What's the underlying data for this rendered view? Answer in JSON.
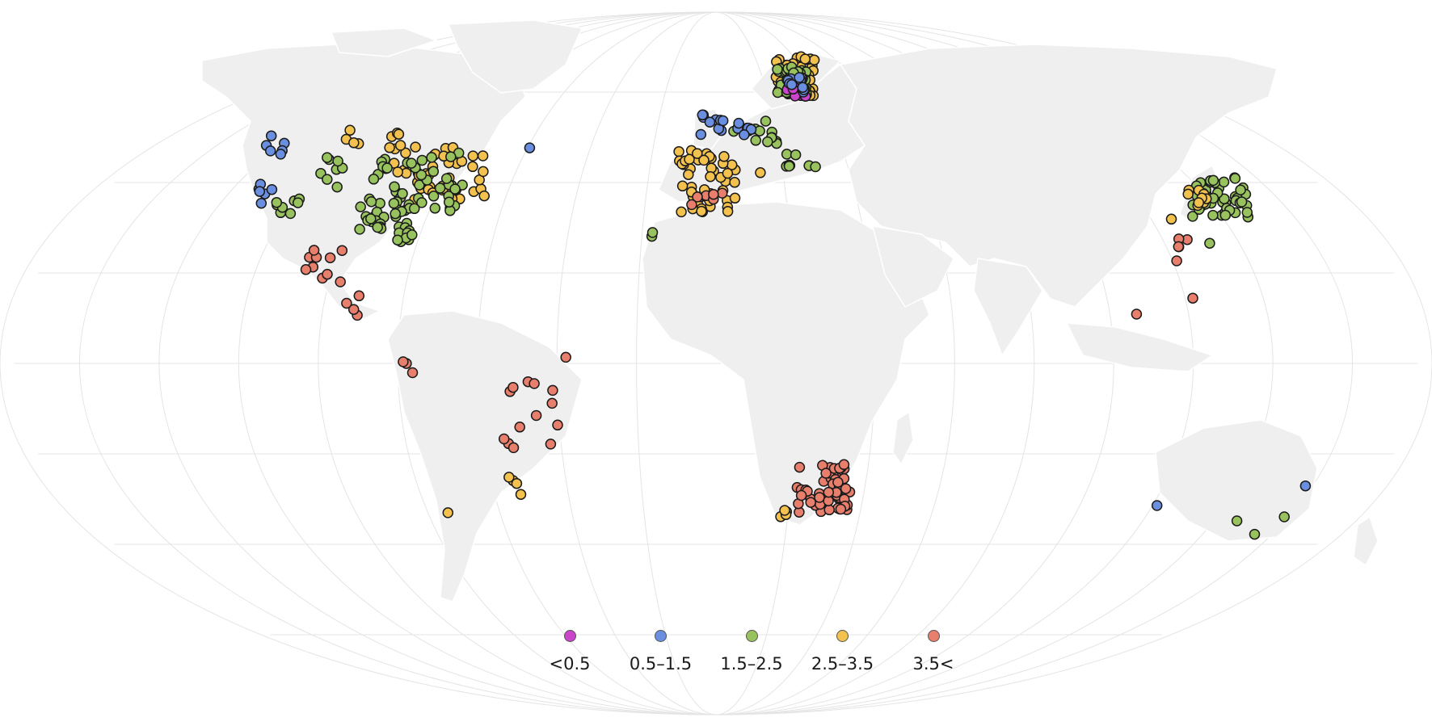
{
  "legend": {
    "items": [
      {
        "label": "<0.5",
        "color": "#cc44cc"
      },
      {
        "label": "0.5–1.5",
        "color": "#6b8fe0"
      },
      {
        "label": "1.5–2.5",
        "color": "#98c25e"
      },
      {
        "label": "2.5–3.5",
        "color": "#f2c14e"
      },
      {
        "label": "3.5<",
        "color": "#e87e6c"
      }
    ]
  },
  "colors": {
    "land": "#efefef",
    "borders": "#ffffff",
    "graticule": "#e4e4e4",
    "point_outline": "#1a1a1a"
  }
}
